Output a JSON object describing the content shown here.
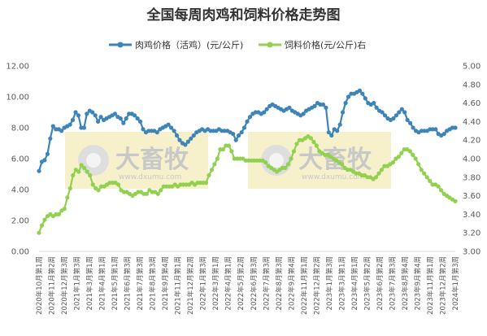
{
  "chart_data": {
    "type": "line",
    "title": "全国每周肉鸡和饲料价格走势图",
    "watermark": {
      "text": "大畜牧",
      "sub": "www.dxumu.com"
    },
    "legend_position": "top",
    "grid": false,
    "y_left": {
      "min": 0,
      "max": 12,
      "ticks": [
        "0.00",
        "2.00",
        "4.00",
        "6.00",
        "8.00",
        "10.00",
        "12.00"
      ]
    },
    "y_right": {
      "min": 3.0,
      "max": 5.0,
      "ticks": [
        "3.00",
        "3.20",
        "3.40",
        "3.60",
        "3.80",
        "4.00",
        "4.20",
        "4.40",
        "4.60",
        "4.80",
        "5.00"
      ]
    },
    "x_labels": [
      "2020年10月第1周",
      "2020年11月第2周",
      "2020年12月第3周",
      "2021年1月第3周",
      "2021年3月第1周",
      "2021年4月第1周",
      "2021年5月第1周",
      "2021年6月第3周",
      "2021年7月第3周",
      "2021年8月第3周",
      "2021年9月第4周",
      "2021年11月第1周",
      "2021年12月第2周",
      "2022年1月第3周",
      "2022年3月第1周",
      "2022年4月第1周",
      "2022年5月第2周",
      "2022年6月第3周",
      "2022年7月第3周",
      "2022年8月第3周",
      "2022年9月第4周",
      "2022年11月第1周",
      "2022年12月第2周",
      "2023年1月第3周",
      "2023年3月第1周",
      "2023年4月第1周",
      "2023年5月第2周",
      "2023年6月第2周",
      "2023年7月第3周",
      "2023年8月第4周",
      "2023年9月第4周",
      "2023年11月第1周",
      "2023年12月第2周",
      "2024年1月第3周"
    ],
    "series": [
      {
        "name": "肉鸡价格（活鸡）(元/公斤)",
        "axis": "left",
        "color": "#3d85b8",
        "values": [
          5.2,
          5.8,
          5.9,
          6.3,
          7.3,
          8.1,
          7.9,
          7.9,
          7.8,
          8.0,
          8.1,
          8.2,
          8.5,
          9.0,
          8.8,
          8.0,
          8.0,
          8.9,
          9.1,
          9.0,
          8.8,
          8.4,
          8.7,
          8.5,
          8.6,
          8.7,
          8.8,
          8.9,
          8.7,
          8.6,
          8.3,
          8.6,
          8.9,
          8.9,
          8.8,
          8.6,
          8.4,
          7.9,
          7.7,
          7.8,
          7.8,
          7.8,
          7.7,
          7.9,
          8.0,
          8.1,
          8.2,
          8.0,
          7.8,
          7.5,
          7.2,
          7.0,
          6.9,
          7.1,
          7.3,
          7.5,
          7.7,
          7.8,
          7.9,
          7.8,
          7.9,
          7.8,
          7.8,
          7.8,
          7.9,
          7.8,
          7.8,
          7.8,
          7.7,
          7.6,
          7.2,
          7.5,
          7.7,
          8.0,
          8.4,
          8.7,
          8.9,
          9.0,
          9.0,
          8.9,
          9.0,
          9.2,
          9.4,
          9.5,
          9.4,
          9.3,
          9.2,
          9.1,
          9.2,
          9.3,
          9.1,
          9.0,
          8.9,
          8.8,
          8.9,
          9.1,
          9.2,
          9.3,
          9.4,
          9.6,
          9.5,
          9.5,
          9.3,
          7.7,
          7.5,
          7.9,
          7.8,
          8.2,
          9.0,
          9.6,
          10.0,
          10.2,
          10.2,
          10.3,
          10.4,
          10.2,
          9.9,
          9.6,
          9.5,
          9.6,
          9.3,
          9.1,
          9.0,
          8.8,
          8.6,
          8.5,
          8.6,
          8.8,
          9.0,
          9.2,
          9.0,
          8.5,
          8.3,
          8.0,
          7.8,
          7.7,
          7.8,
          7.8,
          7.8,
          7.9,
          7.9,
          7.9,
          7.6,
          7.5,
          7.6,
          7.8,
          7.9,
          8.0,
          8.0
        ]
      },
      {
        "name": "饲料价格(元/公斤)右",
        "axis": "right",
        "color": "#92d050",
        "values": [
          3.2,
          3.28,
          3.34,
          3.38,
          3.4,
          3.38,
          3.4,
          3.4,
          3.44,
          3.46,
          3.58,
          3.68,
          3.82,
          3.88,
          3.86,
          3.93,
          3.9,
          3.86,
          3.82,
          3.72,
          3.68,
          3.66,
          3.7,
          3.7,
          3.72,
          3.74,
          3.74,
          3.74,
          3.72,
          3.66,
          3.64,
          3.64,
          3.62,
          3.6,
          3.62,
          3.64,
          3.64,
          3.62,
          3.62,
          3.66,
          3.64,
          3.64,
          3.62,
          3.66,
          3.7,
          3.7,
          3.7,
          3.7,
          3.72,
          3.7,
          3.72,
          3.72,
          3.72,
          3.72,
          3.74,
          3.72,
          3.74,
          3.74,
          3.74,
          3.74,
          3.82,
          3.88,
          3.94,
          4.0,
          4.1,
          4.1,
          4.14,
          4.14,
          4.08,
          4.0,
          4.0,
          4.0,
          4.0,
          3.98,
          3.98,
          3.98,
          3.98,
          3.98,
          3.98,
          3.98,
          3.96,
          3.92,
          3.9,
          3.88,
          3.86,
          3.88,
          3.9,
          3.9,
          3.94,
          4.0,
          4.08,
          4.16,
          4.2,
          4.2,
          4.22,
          4.24,
          4.22,
          4.18,
          4.14,
          4.08,
          4.06,
          4.04,
          4.04,
          4.02,
          4.0,
          3.98,
          3.96,
          3.94,
          3.9,
          3.88,
          3.88,
          3.86,
          3.84,
          3.84,
          3.82,
          3.82,
          3.8,
          3.8,
          3.78,
          3.8,
          3.84,
          3.88,
          3.92,
          3.92,
          3.94,
          3.96,
          4.0,
          4.02,
          4.06,
          4.1,
          4.1,
          4.08,
          4.04,
          4.0,
          3.94,
          3.88,
          3.84,
          3.8,
          3.76,
          3.72,
          3.72,
          3.7,
          3.66,
          3.62,
          3.6,
          3.58,
          3.56,
          3.54
        ]
      }
    ]
  }
}
